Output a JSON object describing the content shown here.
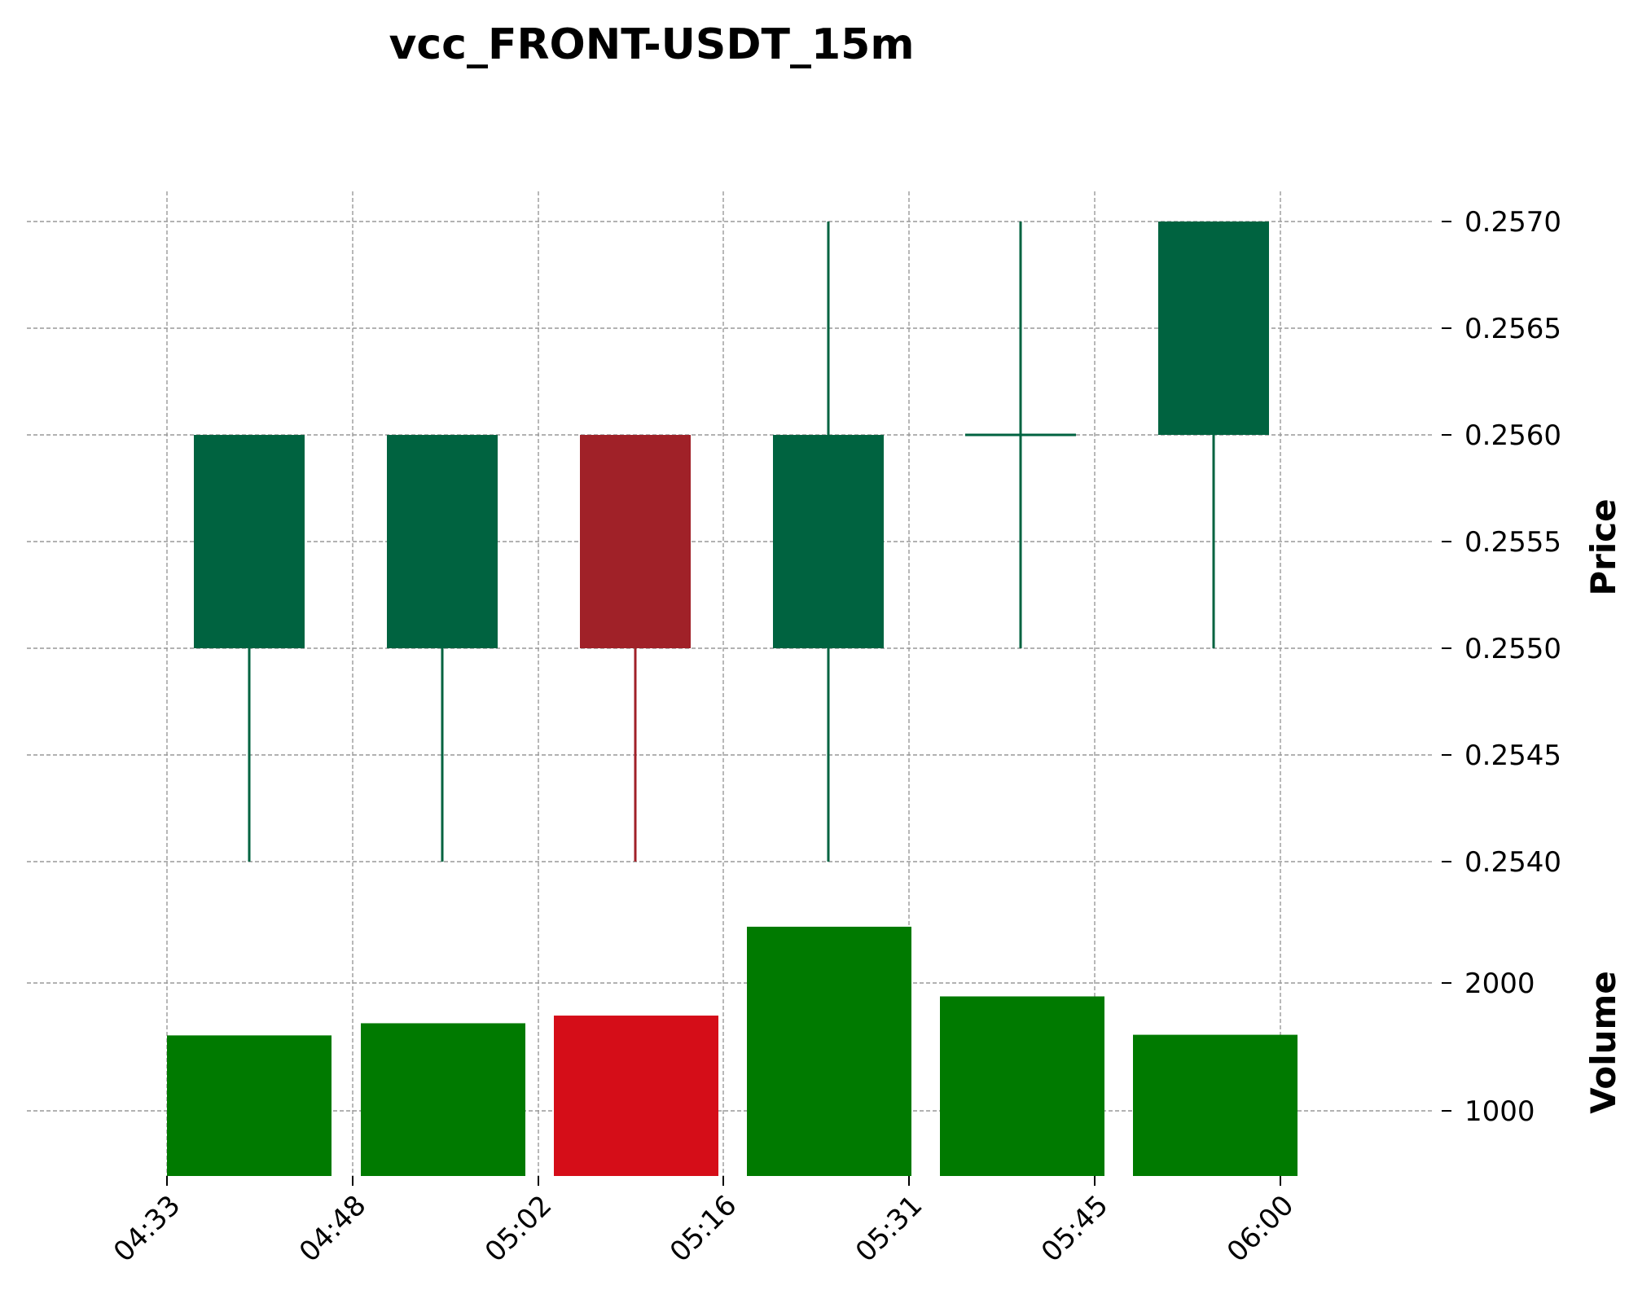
{
  "chart_data": {
    "type": "candlestick",
    "title": "vcc_FRONT-USDT_15m",
    "ylabel_price": "Price",
    "ylabel_volume": "Volume",
    "x_tick_labels": [
      "04:33",
      "04:48",
      "05:02",
      "05:16",
      "05:31",
      "05:45",
      "06:00"
    ],
    "price_ticks": [
      "0.2540",
      "0.2545",
      "0.2550",
      "0.2555",
      "0.2560",
      "0.2565",
      "0.2570"
    ],
    "volume_ticks": [
      "1000",
      "2000"
    ],
    "ylim_price": [
      0.2539,
      0.2571
    ],
    "ylim_volume": [
      500,
      2800
    ],
    "candles": [
      {
        "open": 0.255,
        "high": 0.256,
        "low": 0.254,
        "close": 0.256,
        "volume": 1590
      },
      {
        "open": 0.255,
        "high": 0.256,
        "low": 0.254,
        "close": 0.256,
        "volume": 1685
      },
      {
        "open": 0.256,
        "high": 0.256,
        "low": 0.254,
        "close": 0.255,
        "volume": 1745
      },
      {
        "open": 0.255,
        "high": 0.257,
        "low": 0.254,
        "close": 0.256,
        "volume": 2440
      },
      {
        "open": 0.256,
        "high": 0.257,
        "low": 0.255,
        "close": 0.256,
        "volume": 1895
      },
      {
        "open": 0.256,
        "high": 0.257,
        "low": 0.255,
        "close": 0.257,
        "volume": 1595
      }
    ],
    "grid": true,
    "colors": {
      "candle_up": "#006340",
      "candle_down": "#a02128",
      "volume_up": "#007a00",
      "volume_down": "#d50d18",
      "grid": "#999999"
    }
  }
}
